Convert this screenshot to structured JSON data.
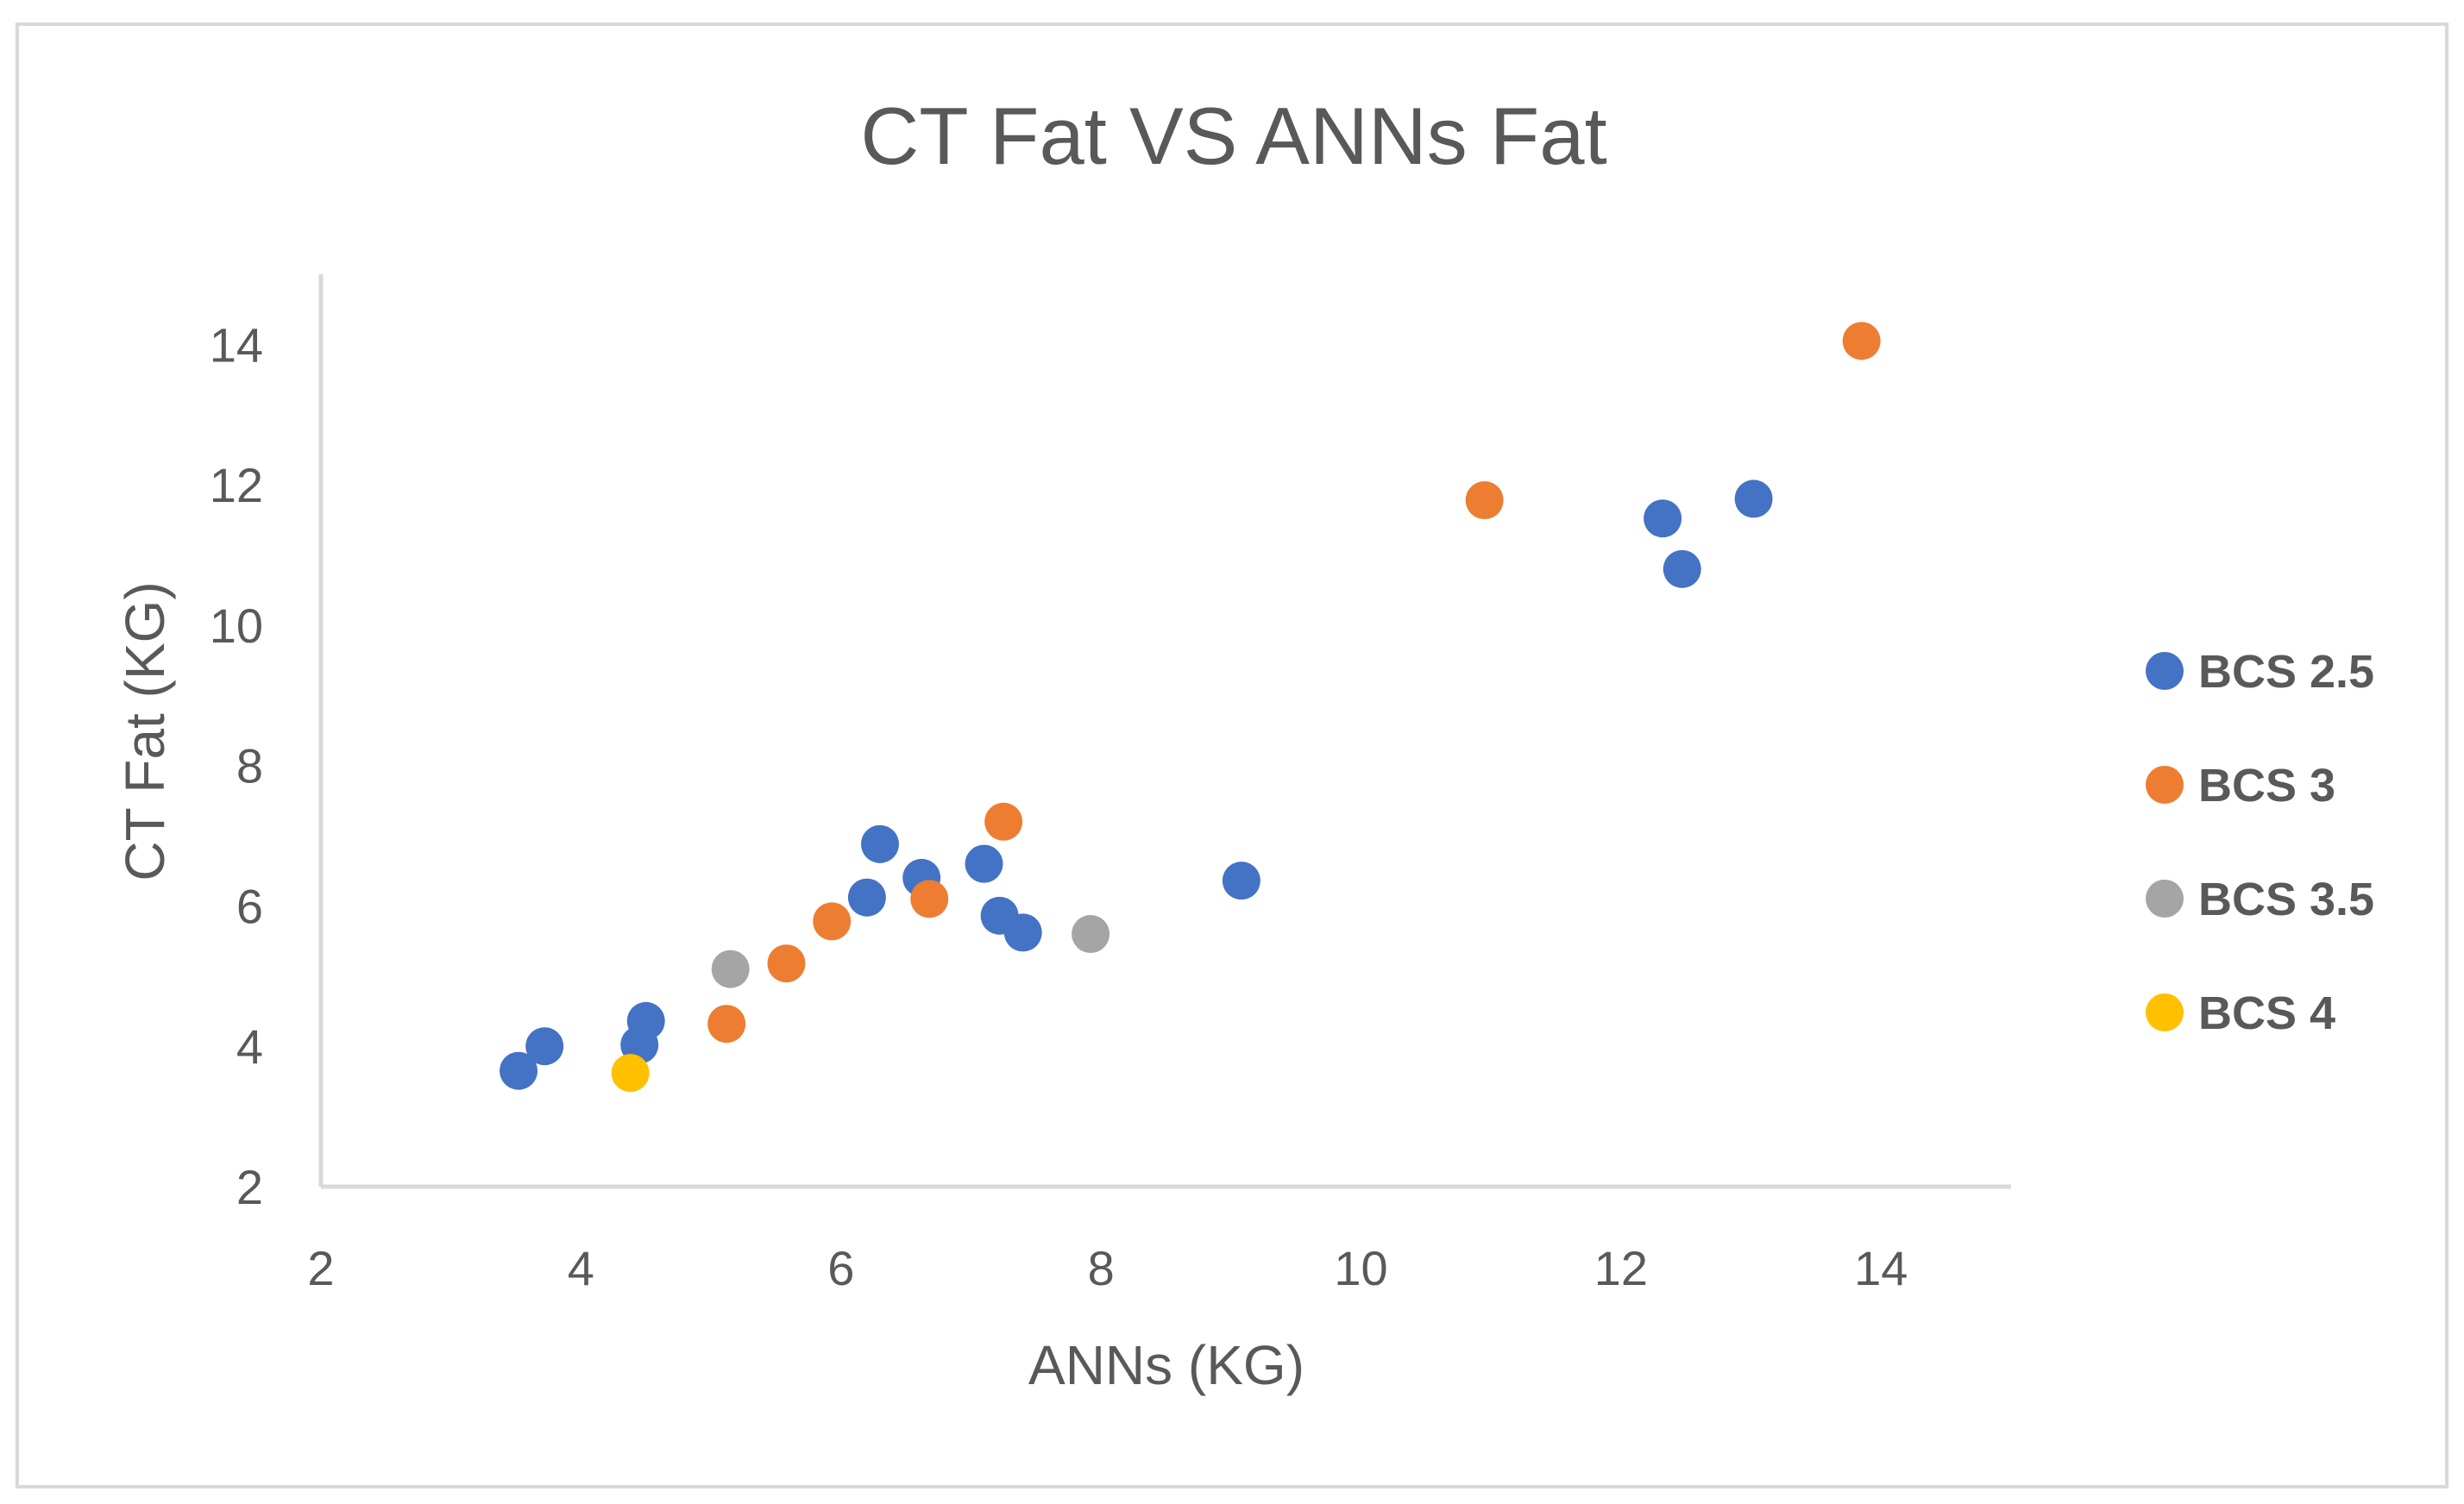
{
  "chart_data": {
    "type": "scatter",
    "title": "CT Fat VS ANNs Fat",
    "xlabel": "ANNs (KG)",
    "ylabel": "CT Fat (KG)",
    "xlim": [
      2,
      15
    ],
    "ylim": [
      2,
      15
    ],
    "xticks": [
      2,
      4,
      6,
      8,
      10,
      12,
      14
    ],
    "yticks": [
      2,
      4,
      6,
      8,
      10,
      12,
      14
    ],
    "grid": false,
    "legend_position": "right",
    "series": [
      {
        "name": "BCS 2.5",
        "color": "#4472c4",
        "points": [
          {
            "x": 3.52,
            "y": 3.65
          },
          {
            "x": 3.72,
            "y": 4.0
          },
          {
            "x": 4.45,
            "y": 4.02
          },
          {
            "x": 4.5,
            "y": 4.36
          },
          {
            "x": 6.2,
            "y": 6.12
          },
          {
            "x": 6.3,
            "y": 6.88
          },
          {
            "x": 6.62,
            "y": 6.4
          },
          {
            "x": 7.1,
            "y": 6.6
          },
          {
            "x": 7.22,
            "y": 5.86
          },
          {
            "x": 7.4,
            "y": 5.62
          },
          {
            "x": 9.08,
            "y": 6.36
          },
          {
            "x": 12.32,
            "y": 11.52
          },
          {
            "x": 12.47,
            "y": 10.8
          },
          {
            "x": 13.02,
            "y": 11.8
          }
        ]
      },
      {
        "name": "BCS 3",
        "color": "#ed7d31",
        "points": [
          {
            "x": 5.12,
            "y": 4.32
          },
          {
            "x": 5.58,
            "y": 5.18
          },
          {
            "x": 5.93,
            "y": 5.78
          },
          {
            "x": 6.68,
            "y": 6.1
          },
          {
            "x": 7.25,
            "y": 7.2
          },
          {
            "x": 10.95,
            "y": 11.78
          },
          {
            "x": 13.85,
            "y": 14.05
          }
        ]
      },
      {
        "name": "BCS 3.5",
        "color": "#a5a5a5",
        "points": [
          {
            "x": 5.15,
            "y": 5.1
          },
          {
            "x": 7.92,
            "y": 5.6
          }
        ]
      },
      {
        "name": "BCS 4",
        "color": "#ffc000",
        "points": [
          {
            "x": 4.38,
            "y": 3.62
          }
        ]
      }
    ]
  }
}
